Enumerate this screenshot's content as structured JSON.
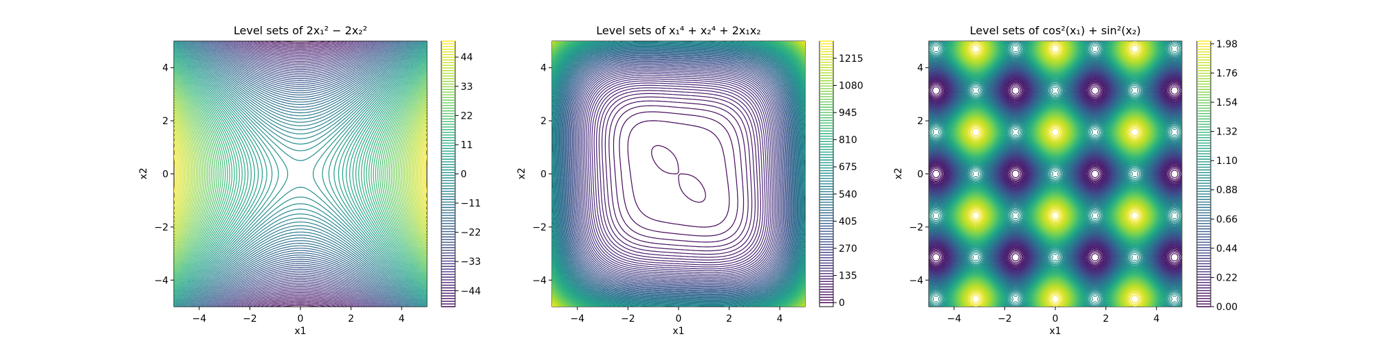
{
  "figure": {
    "background": "#ffffff"
  },
  "colormap": [
    "#440154",
    "#482878",
    "#3e4a89",
    "#31688e",
    "#26828e",
    "#1f9e89",
    "#35b779",
    "#6ece58",
    "#b5de2b",
    "#fde725"
  ],
  "chart_data": [
    {
      "type": "contour",
      "title_prefix": "Level sets of ",
      "title_math": "2x₁² − 2x₂²",
      "function": "2*x1^2 - 2*x2^2",
      "xlabel": "x1",
      "ylabel": "x2",
      "xlim": [
        -5,
        5
      ],
      "ylim": [
        -5,
        5
      ],
      "xticks": [
        -4,
        -2,
        0,
        2,
        4
      ],
      "yticks": [
        -4,
        -2,
        0,
        2,
        4
      ],
      "xtick_labels": [
        "−4",
        "−2",
        "0",
        "2",
        "4"
      ],
      "ytick_labels": [
        "−4",
        "−2",
        "0",
        "2",
        "4"
      ],
      "levels": {
        "min": -50,
        "max": 50,
        "count": 100
      },
      "colorbar": {
        "range": [
          -50,
          50
        ],
        "ticks": [
          44,
          33,
          22,
          11,
          0,
          -11,
          -22,
          -33,
          -44
        ],
        "tick_labels": [
          "44",
          "33",
          "22",
          "11",
          "0",
          "−11",
          "−22",
          "−33",
          "−44"
        ]
      }
    },
    {
      "type": "contour",
      "title_prefix": "Level sets of ",
      "title_math": "x₁⁴ + x₂⁴ + 2x₁x₂",
      "function": "x1^4 + x2^4 + 2*x1*x2",
      "xlabel": "x1",
      "ylabel": "x2",
      "xlim": [
        -5,
        5
      ],
      "ylim": [
        -5,
        5
      ],
      "xticks": [
        -4,
        -2,
        0,
        2,
        4
      ],
      "yticks": [
        -4,
        -2,
        0,
        2,
        4
      ],
      "xtick_labels": [
        "−4",
        "−2",
        "0",
        "2",
        "4"
      ],
      "ytick_labels": [
        "−4",
        "−2",
        "0",
        "2",
        "4"
      ],
      "levels": {
        "min": 0,
        "max": 1300,
        "count": 100
      },
      "colorbar": {
        "range": [
          -20,
          1300
        ],
        "ticks": [
          1215,
          1080,
          945,
          810,
          675,
          540,
          405,
          270,
          135,
          0
        ],
        "tick_labels": [
          "1215",
          "1080",
          "945",
          "810",
          "675",
          "540",
          "405",
          "270",
          "135",
          "0"
        ]
      }
    },
    {
      "type": "contour",
      "title_prefix": "Level sets of ",
      "title_math": "cos²(x₁) + sin²(x₂)",
      "function": "cos(x1)^2 + sin(x2)^2",
      "xlabel": "x1",
      "ylabel": "x2",
      "xlim": [
        -5,
        5
      ],
      "ylim": [
        -5,
        5
      ],
      "xticks": [
        -4,
        -2,
        0,
        2,
        4
      ],
      "yticks": [
        -4,
        -2,
        0,
        2,
        4
      ],
      "xtick_labels": [
        "−4",
        "−2",
        "0",
        "2",
        "4"
      ],
      "ytick_labels": [
        "−4",
        "−2",
        "0",
        "2",
        "4"
      ],
      "levels": {
        "min": 0,
        "max": 2,
        "count": 100
      },
      "colorbar": {
        "range": [
          0,
          2
        ],
        "ticks": [
          1.98,
          1.76,
          1.54,
          1.32,
          1.1,
          0.88,
          0.66,
          0.44,
          0.22,
          0.0
        ],
        "tick_labels": [
          "1.98",
          "1.76",
          "1.54",
          "1.32",
          "1.10",
          "0.88",
          "0.66",
          "0.44",
          "0.22",
          "0.00"
        ]
      }
    }
  ]
}
